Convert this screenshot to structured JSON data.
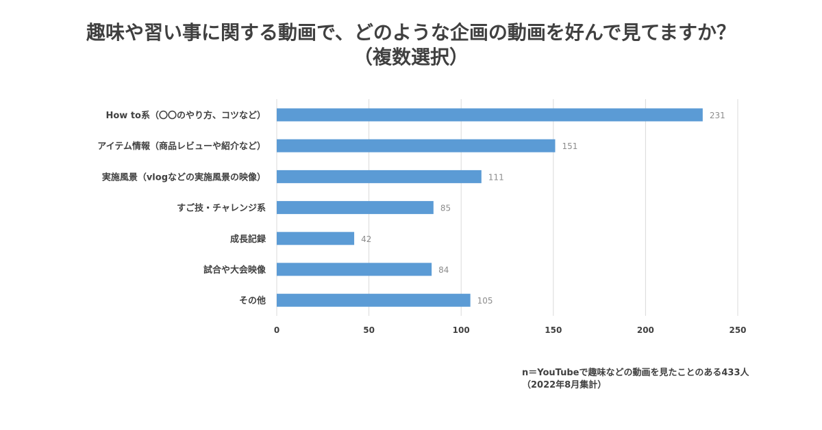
{
  "chart_data": {
    "type": "bar",
    "orientation": "horizontal",
    "title_lines": [
      "趣味や習い事に関する動画で、どのような企画の動画を好んで見てますか？",
      "（複数選択）"
    ],
    "categories": [
      "How to系（〇〇のやり方、コツなど）",
      "アイテム情報（商品レビューや紹介など）",
      "実施風景（vlogなどの実施風景の映像）",
      "すご技・チャレンジ系",
      "成長記録",
      "試合や大会映像",
      "その他"
    ],
    "values": [
      231,
      151,
      111,
      85,
      42,
      84,
      105
    ],
    "xlim": [
      0,
      250
    ],
    "xticks": [
      0,
      50,
      100,
      150,
      200,
      250
    ],
    "grid": true,
    "bar_color": "#5b9bd5",
    "grid_color": "#d9d9d9",
    "data_label_color": "#8c8c8c"
  },
  "footnote": {
    "line1": "n＝YouTubeで趣味などの動画を見たことのある433人",
    "line2": "（2022年8月集計）"
  }
}
